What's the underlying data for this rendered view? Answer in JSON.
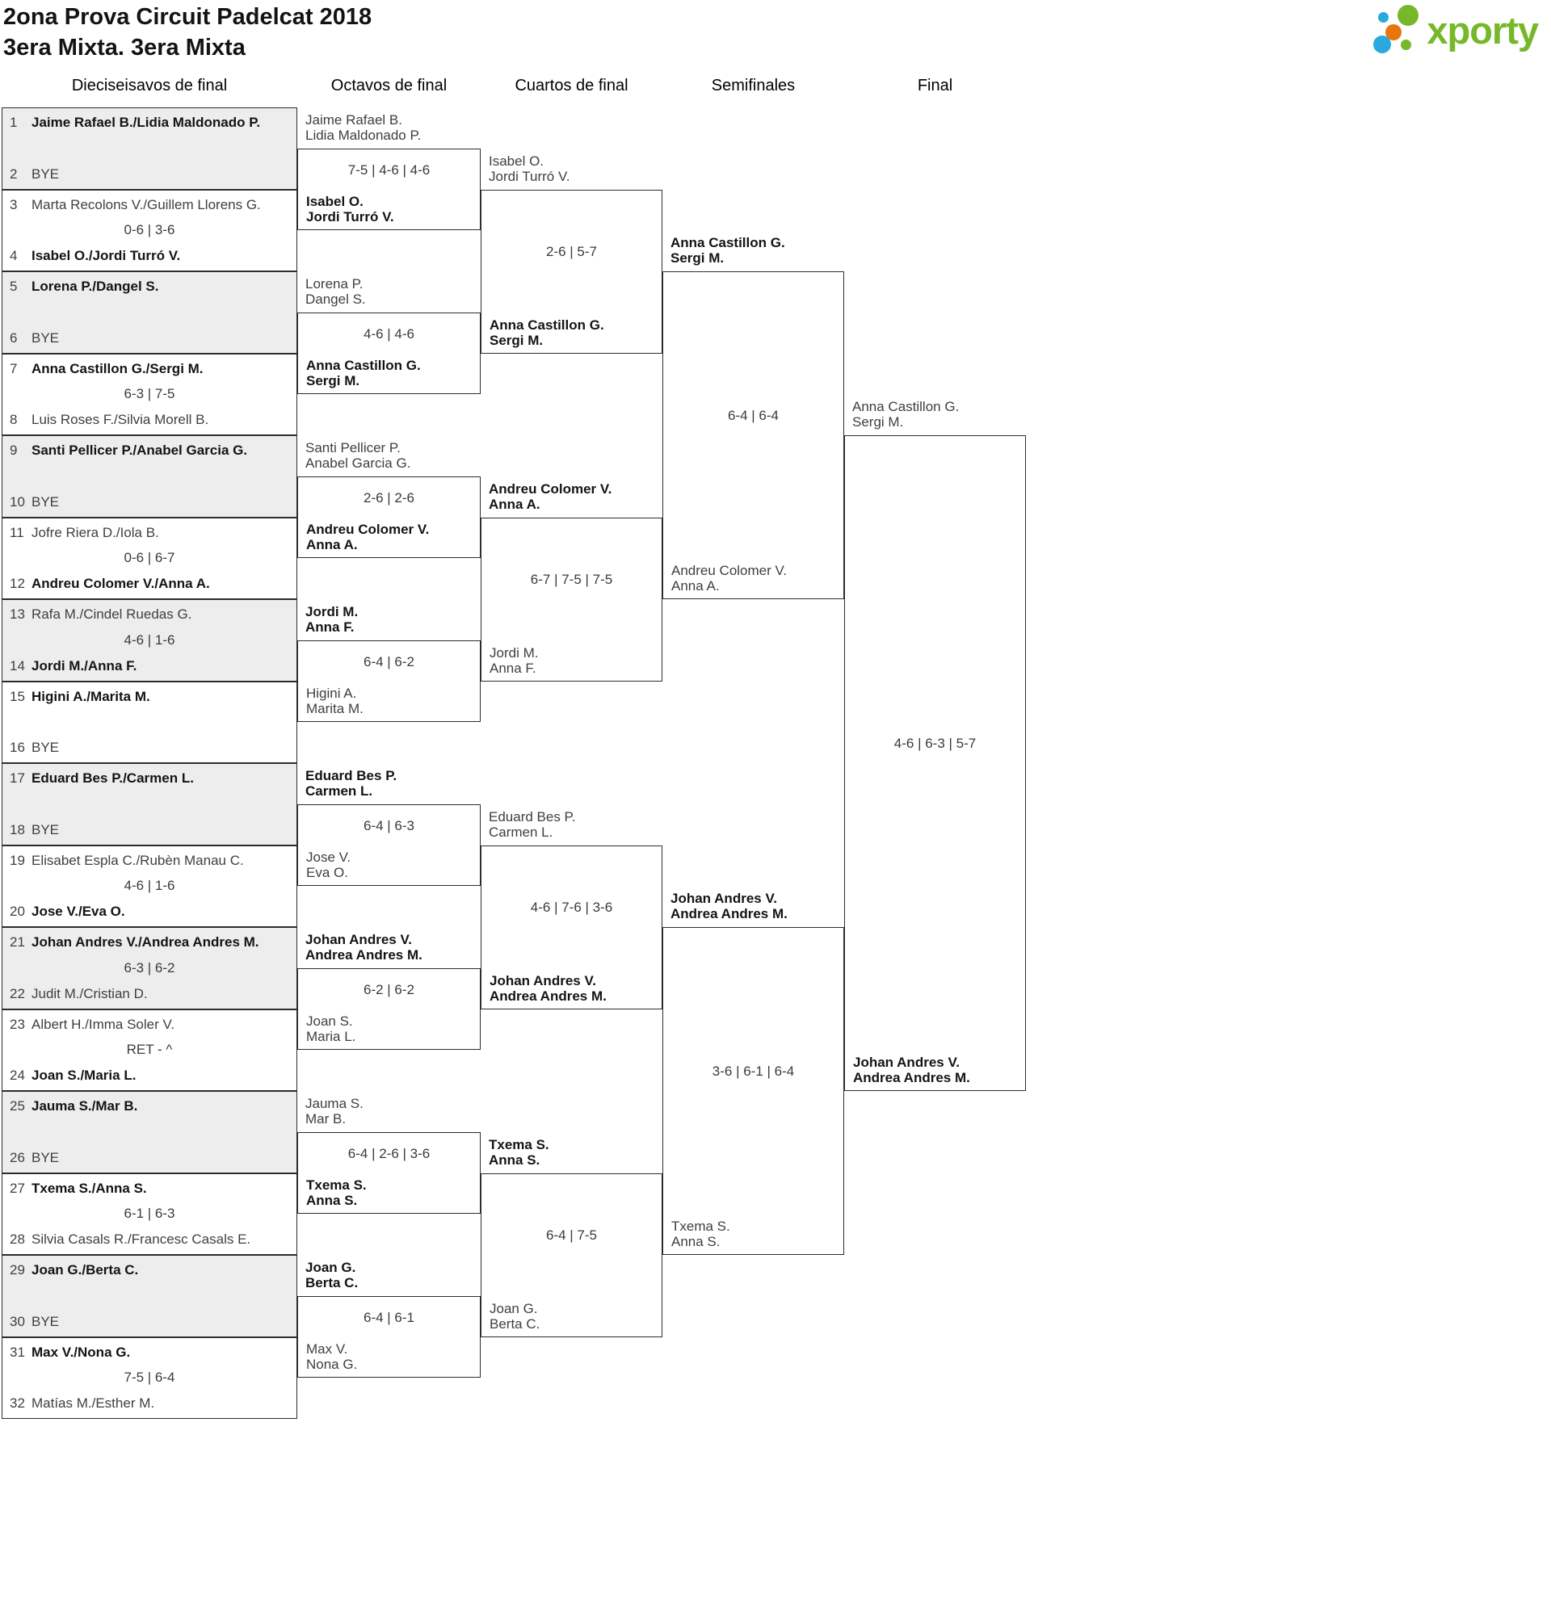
{
  "header": {
    "title": "2ona Prova Circuit Padelcat 2018",
    "subtitle": "3era Mixta. 3era Mixta",
    "logo_text": "xporty"
  },
  "colors": {
    "logo_green": "#76b82a",
    "logo_blue": "#29a9e0",
    "logo_orange": "#e8760e",
    "shade": "#ededed",
    "line": "#2c2c2c"
  },
  "rounds": [
    {
      "label": "Dieciseisavos de final"
    },
    {
      "label": "Octavos de final"
    },
    {
      "label": "Cuartos de final"
    },
    {
      "label": "Semifinales"
    },
    {
      "label": "Final"
    }
  ],
  "bracket": {
    "round_of_32": [
      {
        "seed_top": "1",
        "team_top": "Jaime Rafael B./Lidia Maldonado P.",
        "top_winner": true,
        "score": "",
        "seed_bottom": "2",
        "team_bottom": "BYE",
        "bottom_winner": false
      },
      {
        "seed_top": "3",
        "team_top": "Marta Recolons V./Guillem Llorens G.",
        "top_winner": false,
        "score": "0-6 | 3-6",
        "seed_bottom": "4",
        "team_bottom": "Isabel O./Jordi Turró V.",
        "bottom_winner": true
      },
      {
        "seed_top": "5",
        "team_top": "Lorena P./Dangel S.",
        "top_winner": true,
        "score": "",
        "seed_bottom": "6",
        "team_bottom": "BYE",
        "bottom_winner": false
      },
      {
        "seed_top": "7",
        "team_top": "Anna Castillon G./Sergi M.",
        "top_winner": true,
        "score": "6-3 | 7-5",
        "seed_bottom": "8",
        "team_bottom": "Luis Roses F./Silvia Morell B.",
        "bottom_winner": false
      },
      {
        "seed_top": "9",
        "team_top": "Santi Pellicer P./Anabel Garcia G.",
        "top_winner": true,
        "score": "",
        "seed_bottom": "10",
        "team_bottom": "BYE",
        "bottom_winner": false
      },
      {
        "seed_top": "11",
        "team_top": "Jofre Riera D./Iola B.",
        "top_winner": false,
        "score": "0-6 | 6-7",
        "seed_bottom": "12",
        "team_bottom": "Andreu Colomer V./Anna A.",
        "bottom_winner": true
      },
      {
        "seed_top": "13",
        "team_top": "Rafa M./Cindel Ruedas G.",
        "top_winner": false,
        "score": "4-6 | 1-6",
        "seed_bottom": "14",
        "team_bottom": "Jordi M./Anna F.",
        "bottom_winner": true
      },
      {
        "seed_top": "15",
        "team_top": "Higini A./Marita M.",
        "top_winner": true,
        "score": "",
        "seed_bottom": "16",
        "team_bottom": "BYE",
        "bottom_winner": false
      },
      {
        "seed_top": "17",
        "team_top": "Eduard Bes P./Carmen L.",
        "top_winner": true,
        "score": "",
        "seed_bottom": "18",
        "team_bottom": "BYE",
        "bottom_winner": false
      },
      {
        "seed_top": "19",
        "team_top": "Elisabet Espla C./Rubèn Manau C.",
        "top_winner": false,
        "score": "4-6 | 1-6",
        "seed_bottom": "20",
        "team_bottom": "Jose V./Eva O.",
        "bottom_winner": true
      },
      {
        "seed_top": "21",
        "team_top": "Johan Andres V./Andrea Andres M.",
        "top_winner": true,
        "score": "6-3 | 6-2",
        "seed_bottom": "22",
        "team_bottom": "Judit M./Cristian D.",
        "bottom_winner": false
      },
      {
        "seed_top": "23",
        "team_top": "Albert H./Imma Soler V.",
        "top_winner": false,
        "score": "RET - ^",
        "seed_bottom": "24",
        "team_bottom": "Joan S./Maria L.",
        "bottom_winner": true
      },
      {
        "seed_top": "25",
        "team_top": "Jauma S./Mar B.",
        "top_winner": true,
        "score": "",
        "seed_bottom": "26",
        "team_bottom": "BYE",
        "bottom_winner": false
      },
      {
        "seed_top": "27",
        "team_top": "Txema S./Anna S.",
        "top_winner": true,
        "score": "6-1 | 6-3",
        "seed_bottom": "28",
        "team_bottom": "Silvia Casals R./Francesc Casals E.",
        "bottom_winner": false
      },
      {
        "seed_top": "29",
        "team_top": "Joan G./Berta C.",
        "top_winner": true,
        "score": "",
        "seed_bottom": "30",
        "team_bottom": "BYE",
        "bottom_winner": false
      },
      {
        "seed_top": "31",
        "team_top": "Max V./Nona G.",
        "top_winner": true,
        "score": "7-5 | 6-4",
        "seed_bottom": "32",
        "team_bottom": "Matías M./Esther M.",
        "bottom_winner": false
      }
    ],
    "round_of_16": [
      {
        "team_top": [
          "Jaime Rafael B.",
          "Lidia Maldonado P."
        ],
        "top_winner": false,
        "score": "7-5 | 4-6 | 4-6",
        "team_bottom": [
          "Isabel O.",
          "Jordi Turró V."
        ],
        "bottom_winner": true
      },
      {
        "team_top": [
          "Lorena P.",
          "Dangel S."
        ],
        "top_winner": false,
        "score": "4-6 | 4-6",
        "team_bottom": [
          "Anna Castillon G.",
          "Sergi M."
        ],
        "bottom_winner": true
      },
      {
        "team_top": [
          "Santi Pellicer P.",
          "Anabel Garcia G."
        ],
        "top_winner": false,
        "score": "2-6 | 2-6",
        "team_bottom": [
          "Andreu Colomer V.",
          "Anna A."
        ],
        "bottom_winner": true
      },
      {
        "team_top": [
          "Jordi M.",
          "Anna F."
        ],
        "top_winner": true,
        "score": "6-4 | 6-2",
        "team_bottom": [
          "Higini A.",
          "Marita M."
        ],
        "bottom_winner": false
      },
      {
        "team_top": [
          "Eduard Bes P.",
          "Carmen L."
        ],
        "top_winner": true,
        "score": "6-4 | 6-3",
        "team_bottom": [
          "Jose V.",
          "Eva O."
        ],
        "bottom_winner": false
      },
      {
        "team_top": [
          "Johan Andres V.",
          "Andrea Andres M."
        ],
        "top_winner": true,
        "score": "6-2 | 6-2",
        "team_bottom": [
          "Joan S.",
          "Maria L."
        ],
        "bottom_winner": false
      },
      {
        "team_top": [
          "Jauma S.",
          "Mar B."
        ],
        "top_winner": false,
        "score": "6-4 | 2-6 | 3-6",
        "team_bottom": [
          "Txema S.",
          "Anna S."
        ],
        "bottom_winner": true
      },
      {
        "team_top": [
          "Joan G.",
          "Berta C."
        ],
        "top_winner": true,
        "score": "6-4 | 6-1",
        "team_bottom": [
          "Max V.",
          "Nona G."
        ],
        "bottom_winner": false
      }
    ],
    "quarterfinals": [
      {
        "team_top": [
          "Isabel O.",
          "Jordi Turró V."
        ],
        "top_winner": false,
        "score": "2-6 | 5-7",
        "team_bottom": [
          "Anna Castillon G.",
          "Sergi M."
        ],
        "bottom_winner": true
      },
      {
        "team_top": [
          "Andreu Colomer V.",
          "Anna A."
        ],
        "top_winner": true,
        "score": "6-7 | 7-5 | 7-5",
        "team_bottom": [
          "Jordi M.",
          "Anna F."
        ],
        "bottom_winner": false
      },
      {
        "team_top": [
          "Eduard Bes P.",
          "Carmen L."
        ],
        "top_winner": false,
        "score": "4-6 | 7-6 | 3-6",
        "team_bottom": [
          "Johan Andres V.",
          "Andrea Andres M."
        ],
        "bottom_winner": true
      },
      {
        "team_top": [
          "Txema S.",
          "Anna S."
        ],
        "top_winner": true,
        "score": "6-4 | 7-5",
        "team_bottom": [
          "Joan G.",
          "Berta C."
        ],
        "bottom_winner": false
      }
    ],
    "semifinals": [
      {
        "team_top": [
          "Anna Castillon G.",
          "Sergi M."
        ],
        "top_winner": true,
        "score": "6-4 | 6-4",
        "team_bottom": [
          "Andreu Colomer V.",
          "Anna A."
        ],
        "bottom_winner": false
      },
      {
        "team_top": [
          "Johan Andres V.",
          "Andrea Andres M."
        ],
        "top_winner": true,
        "score": "3-6 | 6-1 | 6-4",
        "team_bottom": [
          "Txema S.",
          "Anna S."
        ],
        "bottom_winner": false
      }
    ],
    "final": [
      {
        "team_top": [
          "Anna Castillon G.",
          "Sergi M."
        ],
        "top_winner": false,
        "score": "4-6 | 6-3 | 5-7",
        "team_bottom": [
          "Johan Andres V.",
          "Andrea Andres M."
        ],
        "bottom_winner": true
      }
    ]
  }
}
